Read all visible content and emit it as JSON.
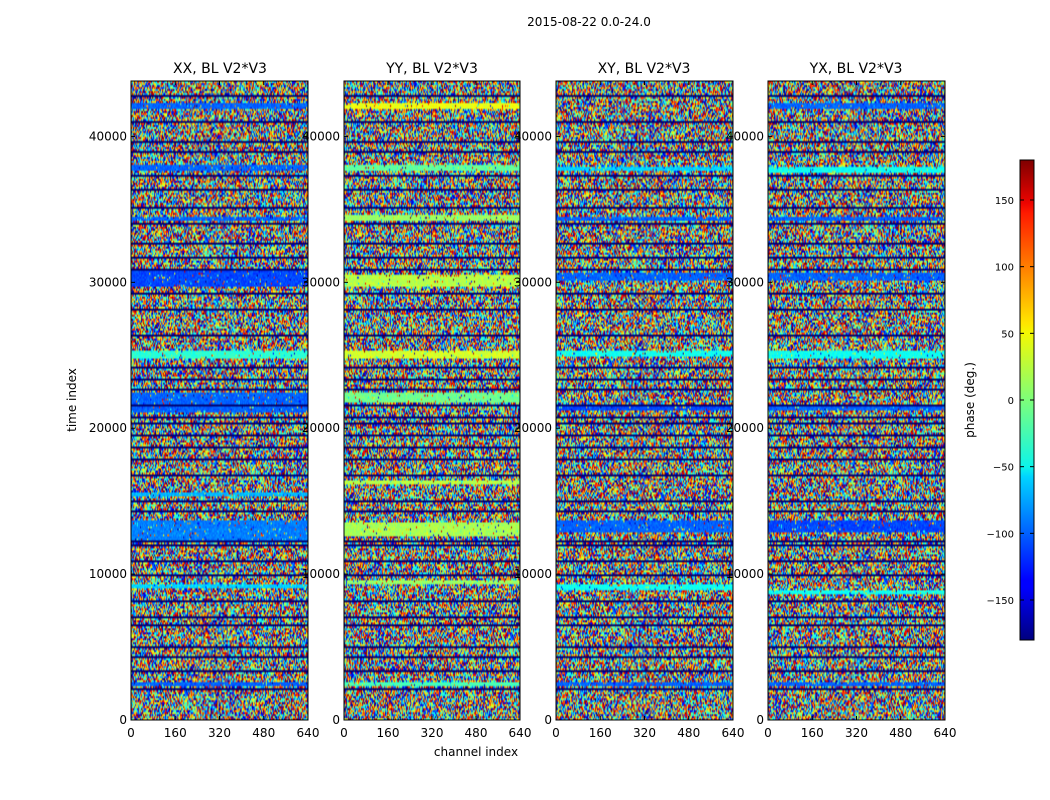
{
  "chart_data": {
    "type": "heatmap",
    "suptitle": "2015-08-22 0.0-24.0",
    "xlabel": "channel index",
    "ylabel": "time index",
    "xlim": [
      0,
      640
    ],
    "ylim": [
      0,
      43800
    ],
    "x_ticks": [
      0,
      160,
      320,
      480,
      640
    ],
    "y_ticks": [
      0,
      10000,
      20000,
      30000,
      40000
    ],
    "panels": [
      {
        "title": "XX, BL V2*V3",
        "bands": [
          {
            "y": [
              2300,
              2600
            ],
            "phase": -100
          },
          {
            "y": [
              9000,
              9300
            ],
            "phase": -60
          },
          {
            "y": [
              12200,
              13700
            ],
            "phase": -90
          },
          {
            "y": [
              15300,
              15600
            ],
            "phase": -70
          },
          {
            "y": [
              21100,
              21500
            ],
            "phase": -100
          },
          {
            "y": [
              21600,
              22400
            ],
            "phase": -100
          },
          {
            "y": [
              24800,
              25400
            ],
            "phase": -30
          },
          {
            "y": [
              29700,
              30800
            ],
            "phase": -110
          },
          {
            "y": [
              34200,
              34600
            ],
            "phase": -100
          },
          {
            "y": [
              37700,
              38100
            ],
            "phase": -100
          },
          {
            "y": [
              42000,
              42400
            ],
            "phase": -100
          }
        ]
      },
      {
        "title": "YY, BL V2*V3",
        "bands": [
          {
            "y": [
              2300,
              2600
            ],
            "phase": -20
          },
          {
            "y": [
              9300,
              9600
            ],
            "phase": 10
          },
          {
            "y": [
              12600,
              13500
            ],
            "phase": 15
          },
          {
            "y": [
              16100,
              16400
            ],
            "phase": 20
          },
          {
            "y": [
              21700,
              22500
            ],
            "phase": -5
          },
          {
            "y": [
              24800,
              25400
            ],
            "phase": 30
          },
          {
            "y": [
              29700,
              30600
            ],
            "phase": 20
          },
          {
            "y": [
              34200,
              34700
            ],
            "phase": 10
          },
          {
            "y": [
              37700,
              38100
            ],
            "phase": -10
          },
          {
            "y": [
              42000,
              42400
            ],
            "phase": 40
          }
        ]
      },
      {
        "title": "XY, BL V2*V3",
        "bands": [
          {
            "y": [
              2300,
              2600
            ],
            "phase": -100
          },
          {
            "y": [
              8900,
              9200
            ],
            "phase": -40
          },
          {
            "y": [
              12800,
              13600
            ],
            "phase": -100
          },
          {
            "y": [
              21200,
              21600
            ],
            "phase": -110
          },
          {
            "y": [
              24900,
              25400
            ],
            "phase": -40
          },
          {
            "y": [
              30200,
              30700
            ],
            "phase": -100
          },
          {
            "y": [
              34300,
              34600
            ],
            "phase": -100
          },
          {
            "y": [
              37700,
              38000
            ],
            "phase": -60
          }
        ]
      },
      {
        "title": "YX, BL V2*V3",
        "bands": [
          {
            "y": [
              2300,
              2600
            ],
            "phase": -100
          },
          {
            "y": [
              8600,
              8900
            ],
            "phase": -40
          },
          {
            "y": [
              12800,
              13600
            ],
            "phase": -110
          },
          {
            "y": [
              21200,
              21600
            ],
            "phase": -100
          },
          {
            "y": [
              24800,
              25400
            ],
            "phase": -40
          },
          {
            "y": [
              30200,
              30700
            ],
            "phase": -100
          },
          {
            "y": [
              34300,
              34600
            ],
            "phase": -100
          },
          {
            "y": [
              37500,
              37900
            ],
            "phase": -40
          },
          {
            "y": [
              42000,
              42300
            ],
            "phase": -100
          }
        ]
      }
    ],
    "gap_rows": [
      2100,
      3300,
      4300,
      5000,
      6500,
      7000,
      8100,
      9900,
      10800,
      11900,
      12200,
      14300,
      15000,
      16800,
      17900,
      18700,
      19500,
      20300,
      20800,
      21600,
      22600,
      23400,
      24100,
      26400,
      28200,
      29300,
      30900,
      31700,
      32700,
      34000,
      35200,
      36400,
      37400,
      39000,
      39700,
      41000,
      42900
    ],
    "colorbar": {
      "label": "phase (deg.)",
      "range": [
        -180,
        180
      ],
      "ticks": [
        -150,
        -100,
        -50,
        0,
        50,
        100,
        150
      ],
      "tick_labels": [
        "−150",
        "−100",
        "−50",
        "0",
        "50",
        "100",
        "150"
      ],
      "colormap": "jet"
    }
  }
}
